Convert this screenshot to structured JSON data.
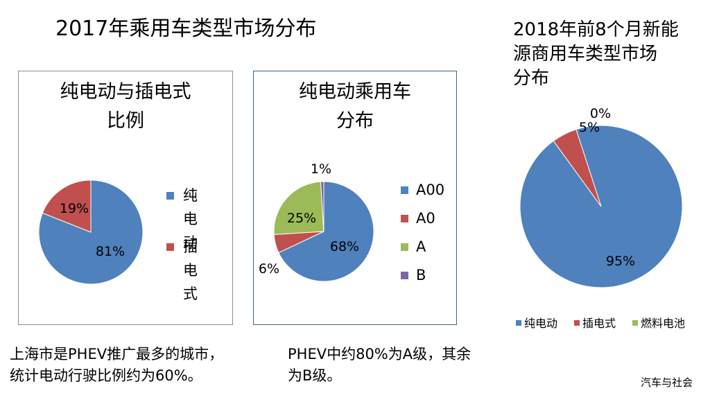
{
  "main_title": "2017年乘用车类型市场分布",
  "charts": {
    "left": {
      "title_line1": "纯电动与插电式",
      "title_line2": "比例"
    },
    "middle": {
      "title_line1": "纯电动乘用车",
      "title_line2": "分布"
    },
    "right": {
      "title_line1": "2018年前8个月新能",
      "title_line2": "源商用车类型市场",
      "title_line3": "分布"
    }
  },
  "chart_data": [
    {
      "type": "pie",
      "title": "纯电动与插电式比例",
      "categories": [
        "纯电动",
        "插电式"
      ],
      "values": [
        81,
        19
      ],
      "labels": [
        "81%",
        "19%"
      ],
      "colors": [
        "#4f81bd",
        "#c0504d"
      ],
      "legend": [
        "纯电\n动",
        "插电\n式"
      ],
      "legend_position": "right"
    },
    {
      "type": "pie",
      "title": "纯电动乘用车分布",
      "categories": [
        "A00",
        "A0",
        "A",
        "B"
      ],
      "values": [
        68,
        6,
        25,
        1
      ],
      "labels": [
        "68%",
        "6%",
        "25%",
        "1%"
      ],
      "colors": [
        "#4f81bd",
        "#c0504d",
        "#9bbb59",
        "#8064a2"
      ],
      "legend_position": "right"
    },
    {
      "type": "pie",
      "title": "2018年前8个月新能源商用车类型市场分布",
      "categories": [
        "纯电动",
        "插电式",
        "燃料电池"
      ],
      "values": [
        95,
        5,
        0
      ],
      "labels": [
        "95%",
        "5%",
        "0%"
      ],
      "colors": [
        "#4f81bd",
        "#c0504d",
        "#9bbb59"
      ],
      "legend_position": "bottom"
    }
  ],
  "notes": {
    "left_line1": "上海市是PHEV推广最多的城市，",
    "left_line2": "统计电动行驶比例约为60%。",
    "middle_line1": "PHEV中约80%为A级，其余",
    "middle_line2": "为B级。"
  },
  "watermark": "汽车与社会"
}
